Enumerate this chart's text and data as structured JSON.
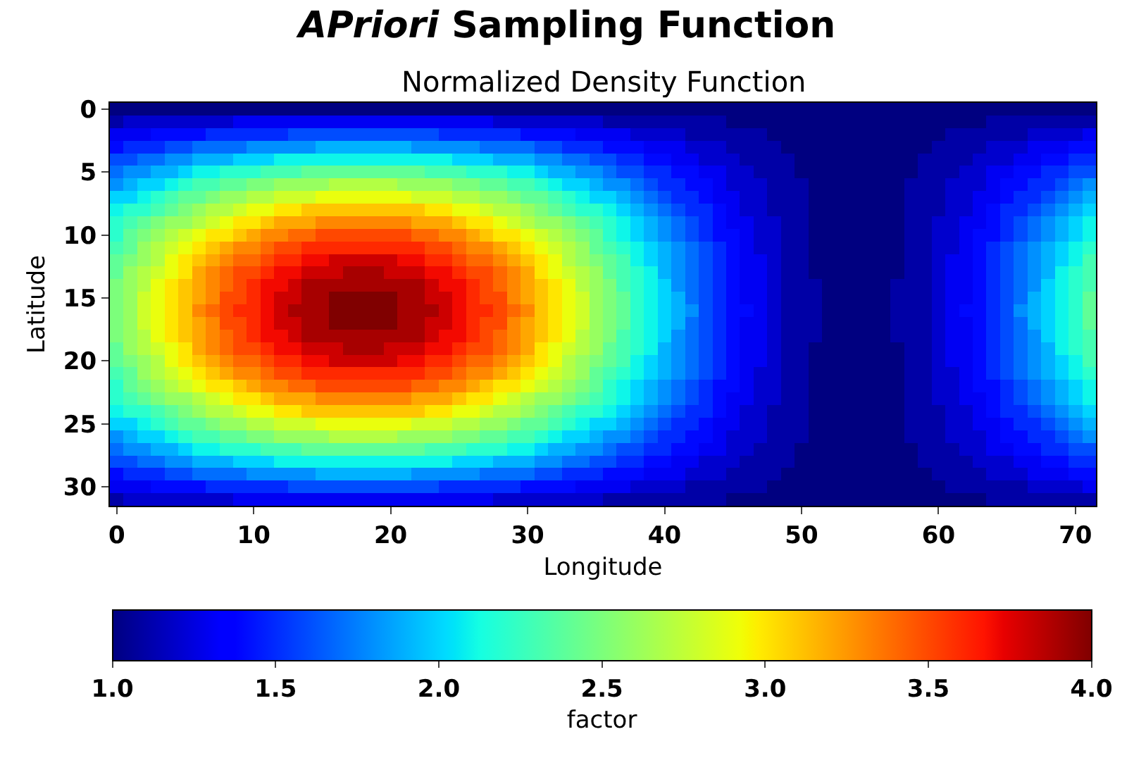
{
  "chart_data": {
    "type": "heatmap",
    "title": "APriori Sampling Function",
    "subtitle": "Normalized Density Function",
    "xlabel": "Longitude",
    "ylabel": "Latitude",
    "clabel": "factor",
    "x": [
      0,
      1,
      2,
      3,
      4,
      5,
      6,
      7,
      8,
      9,
      10,
      11,
      12,
      13,
      14,
      15,
      16,
      17,
      18,
      19,
      20,
      21,
      22,
      23,
      24,
      25,
      26,
      27,
      28,
      29,
      30,
      31,
      32,
      33,
      34,
      35,
      36,
      37,
      38,
      39,
      40,
      41,
      42,
      43,
      44,
      45,
      46,
      47,
      48,
      49,
      50,
      51,
      52,
      53,
      54,
      55,
      56,
      57,
      58,
      59,
      60,
      61,
      62,
      63,
      64,
      65,
      66,
      67,
      68,
      69,
      70,
      71
    ],
    "xlim": [
      -0.5,
      71.5
    ],
    "xticks": [
      0,
      10,
      20,
      30,
      40,
      50,
      60,
      70
    ],
    "ylim": [
      31.5,
      -0.5
    ],
    "yticks": [
      0,
      5,
      10,
      15,
      20,
      25,
      30
    ],
    "clim": [
      1,
      4
    ],
    "cticks": [
      {
        "value": 1,
        "label": "1.0"
      },
      1.5,
      {
        "value": 2,
        "label": "2.0"
      },
      2.5,
      {
        "value": 3,
        "label": "3.0"
      },
      3.5,
      {
        "value": 4,
        "label": "4.0"
      }
    ],
    "cells": [
      [
        1,
        1,
        1,
        1,
        1,
        1,
        1,
        1,
        1,
        1,
        1,
        1,
        1,
        1,
        1,
        1,
        1,
        1,
        1,
        1,
        1,
        1,
        1,
        1,
        1,
        1,
        1,
        1,
        1,
        1,
        1,
        1,
        1,
        1,
        1,
        1,
        1,
        1,
        1,
        1,
        1,
        1,
        1,
        1,
        1,
        1,
        1,
        1,
        1,
        1,
        1,
        1,
        1,
        1,
        1,
        1,
        1,
        1,
        1,
        1,
        1,
        1,
        1,
        1,
        1,
        1,
        1,
        1,
        1,
        1,
        1,
        1
      ],
      [
        1.1,
        1.2,
        1.2,
        1.2,
        1.2,
        1.2,
        1.2,
        1.2,
        1.2,
        1.3,
        1.3,
        1.3,
        1.3,
        1.3,
        1.3,
        1.3,
        1.3,
        1.3,
        1.3,
        1.3,
        1.3,
        1.3,
        1.3,
        1.3,
        1.3,
        1.3,
        1.3,
        1.3,
        1.2,
        1.2,
        1.2,
        1.2,
        1.2,
        1.2,
        1.2,
        1.2,
        1.1,
        1.1,
        1.1,
        1.1,
        1.1,
        1.1,
        1.1,
        1.1,
        1.1,
        1,
        1,
        1,
        1,
        1,
        1,
        1,
        1,
        1,
        1,
        1,
        1,
        1,
        1,
        1,
        1,
        1,
        1,
        1,
        1.1,
        1.1,
        1.1,
        1.1,
        1.1,
        1.1,
        1.1,
        1.1
      ],
      [
        1.3,
        1.3,
        1.3,
        1.4,
        1.4,
        1.4,
        1.4,
        1.5,
        1.5,
        1.5,
        1.5,
        1.5,
        1.5,
        1.6,
        1.6,
        1.6,
        1.6,
        1.6,
        1.6,
        1.6,
        1.6,
        1.6,
        1.6,
        1.6,
        1.5,
        1.5,
        1.5,
        1.5,
        1.5,
        1.5,
        1.4,
        1.4,
        1.4,
        1.4,
        1.3,
        1.3,
        1.3,
        1.3,
        1.2,
        1.2,
        1.2,
        1.2,
        1.1,
        1.1,
        1.1,
        1.1,
        1.1,
        1.1,
        1,
        1,
        1,
        1,
        1,
        1,
        1,
        1,
        1,
        1,
        1,
        1,
        1,
        1.1,
        1.1,
        1.1,
        1.1,
        1.1,
        1.1,
        1.2,
        1.2,
        1.2,
        1.2,
        1.3
      ],
      [
        1.4,
        1.5,
        1.5,
        1.5,
        1.6,
        1.6,
        1.7,
        1.7,
        1.7,
        1.7,
        1.8,
        1.8,
        1.8,
        1.8,
        1.8,
        1.9,
        1.9,
        1.9,
        1.9,
        1.9,
        1.9,
        1.9,
        1.8,
        1.8,
        1.8,
        1.8,
        1.8,
        1.7,
        1.7,
        1.7,
        1.7,
        1.6,
        1.6,
        1.5,
        1.5,
        1.5,
        1.4,
        1.4,
        1.4,
        1.3,
        1.3,
        1.3,
        1.2,
        1.2,
        1.2,
        1.1,
        1.1,
        1.1,
        1.1,
        1,
        1,
        1,
        1,
        1,
        1,
        1,
        1,
        1,
        1,
        1,
        1.1,
        1.1,
        1.1,
        1.1,
        1.2,
        1.2,
        1.2,
        1.3,
        1.3,
        1.3,
        1.4,
        1.4
      ],
      [
        1.6,
        1.6,
        1.7,
        1.7,
        1.8,
        1.8,
        1.9,
        1.9,
        1.9,
        2,
        2,
        2,
        2.1,
        2.1,
        2.1,
        2.1,
        2.1,
        2.1,
        2.1,
        2.1,
        2.1,
        2.1,
        2.1,
        2.1,
        2.1,
        2,
        2,
        2,
        1.9,
        1.9,
        1.9,
        1.8,
        1.8,
        1.7,
        1.7,
        1.6,
        1.6,
        1.5,
        1.5,
        1.4,
        1.4,
        1.3,
        1.3,
        1.2,
        1.2,
        1.2,
        1.1,
        1.1,
        1.1,
        1.1,
        1,
        1,
        1,
        1,
        1,
        1,
        1,
        1,
        1,
        1.1,
        1.1,
        1.1,
        1.1,
        1.2,
        1.2,
        1.2,
        1.3,
        1.3,
        1.4,
        1.4,
        1.5,
        1.5
      ],
      [
        1.7,
        1.8,
        1.8,
        1.9,
        1.9,
        2,
        2.1,
        2.1,
        2.2,
        2.2,
        2.2,
        2.3,
        2.3,
        2.3,
        2.4,
        2.4,
        2.4,
        2.4,
        2.4,
        2.4,
        2.4,
        2.4,
        2.4,
        2.3,
        2.3,
        2.3,
        2.2,
        2.2,
        2.2,
        2.1,
        2.1,
        2,
        1.9,
        1.9,
        1.8,
        1.8,
        1.7,
        1.6,
        1.6,
        1.5,
        1.5,
        1.4,
        1.4,
        1.3,
        1.3,
        1.2,
        1.2,
        1.1,
        1.1,
        1.1,
        1,
        1,
        1,
        1,
        1,
        1,
        1,
        1,
        1,
        1.1,
        1.1,
        1.1,
        1.2,
        1.2,
        1.3,
        1.3,
        1.4,
        1.4,
        1.5,
        1.5,
        1.6,
        1.6
      ],
      [
        1.8,
        1.9,
        2,
        2,
        2.1,
        2.2,
        2.3,
        2.3,
        2.4,
        2.4,
        2.5,
        2.5,
        2.6,
        2.6,
        2.6,
        2.6,
        2.7,
        2.7,
        2.7,
        2.7,
        2.7,
        2.6,
        2.6,
        2.6,
        2.6,
        2.5,
        2.5,
        2.4,
        2.4,
        2.3,
        2.3,
        2.2,
        2.1,
        2,
        2,
        1.9,
        1.8,
        1.8,
        1.7,
        1.6,
        1.5,
        1.5,
        1.4,
        1.4,
        1.3,
        1.2,
        1.2,
        1.2,
        1.1,
        1.1,
        1.1,
        1,
        1,
        1,
        1,
        1,
        1,
        1,
        1.1,
        1.1,
        1.1,
        1.2,
        1.2,
        1.2,
        1.3,
        1.4,
        1.4,
        1.5,
        1.5,
        1.6,
        1.7,
        1.8
      ],
      [
        2,
        2,
        2.1,
        2.2,
        2.3,
        2.4,
        2.4,
        2.5,
        2.6,
        2.6,
        2.7,
        2.7,
        2.8,
        2.8,
        2.8,
        2.9,
        2.9,
        2.9,
        2.9,
        2.9,
        2.9,
        2.9,
        2.8,
        2.8,
        2.8,
        2.7,
        2.7,
        2.6,
        2.6,
        2.5,
        2.4,
        2.4,
        2.3,
        2.2,
        2.1,
        2,
        2,
        1.9,
        1.8,
        1.7,
        1.6,
        1.5,
        1.5,
        1.4,
        1.3,
        1.3,
        1.2,
        1.2,
        1.1,
        1.1,
        1.1,
        1,
        1,
        1,
        1,
        1,
        1,
        1,
        1.1,
        1.1,
        1.1,
        1.2,
        1.2,
        1.3,
        1.3,
        1.4,
        1.5,
        1.5,
        1.6,
        1.7,
        1.8,
        1.9
      ],
      [
        2.1,
        2.2,
        2.2,
        2.3,
        2.4,
        2.5,
        2.6,
        2.7,
        2.7,
        2.8,
        2.9,
        2.9,
        3,
        3,
        3.1,
        3.1,
        3.1,
        3.1,
        3.1,
        3.1,
        3.1,
        3.1,
        3.1,
        3,
        3,
        2.9,
        2.9,
        2.8,
        2.7,
        2.7,
        2.6,
        2.5,
        2.4,
        2.3,
        2.2,
        2.2,
        2.1,
        2,
        1.9,
        1.8,
        1.7,
        1.6,
        1.5,
        1.5,
        1.4,
        1.3,
        1.2,
        1.2,
        1.1,
        1.1,
        1.1,
        1,
        1,
        1,
        1,
        1,
        1,
        1,
        1.1,
        1.1,
        1.1,
        1.2,
        1.2,
        1.3,
        1.4,
        1.5,
        1.5,
        1.6,
        1.7,
        1.8,
        1.9,
        2
      ],
      [
        2.2,
        2.3,
        2.4,
        2.5,
        2.6,
        2.6,
        2.7,
        2.8,
        2.9,
        3,
        3,
        3.1,
        3.2,
        3.2,
        3.2,
        3.3,
        3.3,
        3.3,
        3.3,
        3.3,
        3.3,
        3.3,
        3.2,
        3.2,
        3.2,
        3.1,
        3,
        3,
        2.9,
        2.8,
        2.7,
        2.6,
        2.6,
        2.5,
        2.4,
        2.3,
        2.2,
        2.1,
        2,
        1.9,
        1.8,
        1.7,
        1.6,
        1.5,
        1.4,
        1.3,
        1.3,
        1.2,
        1.2,
        1.1,
        1.1,
        1,
        1,
        1,
        1,
        1,
        1,
        1,
        1.1,
        1.1,
        1.2,
        1.2,
        1.3,
        1.3,
        1.4,
        1.5,
        1.6,
        1.7,
        1.8,
        1.9,
        2,
        2.1
      ],
      [
        2.2,
        2.4,
        2.5,
        2.6,
        2.7,
        2.8,
        2.9,
        3,
        3,
        3.1,
        3.2,
        3.3,
        3.3,
        3.4,
        3.4,
        3.5,
        3.5,
        3.5,
        3.5,
        3.5,
        3.5,
        3.5,
        3.4,
        3.4,
        3.3,
        3.3,
        3.2,
        3.1,
        3,
        3,
        2.9,
        2.8,
        2.7,
        2.6,
        2.5,
        2.4,
        2.2,
        2.1,
        2,
        1.9,
        1.8,
        1.7,
        1.6,
        1.5,
        1.4,
        1.4,
        1.3,
        1.2,
        1.2,
        1.1,
        1.1,
        1,
        1,
        1,
        1,
        1,
        1,
        1,
        1.1,
        1.1,
        1.2,
        1.2,
        1.3,
        1.4,
        1.4,
        1.5,
        1.6,
        1.7,
        1.8,
        1.9,
        2,
        2.1
      ],
      [
        2.3,
        2.4,
        2.6,
        2.7,
        2.8,
        2.9,
        3,
        3.1,
        3.2,
        3.3,
        3.3,
        3.4,
        3.5,
        3.5,
        3.6,
        3.6,
        3.6,
        3.6,
        3.6,
        3.6,
        3.6,
        3.6,
        3.6,
        3.5,
        3.5,
        3.4,
        3.3,
        3.3,
        3.2,
        3.1,
        3,
        2.9,
        2.8,
        2.7,
        2.6,
        2.4,
        2.3,
        2.2,
        2.1,
        2,
        1.9,
        1.8,
        1.7,
        1.6,
        1.5,
        1.4,
        1.3,
        1.2,
        1.2,
        1.1,
        1.1,
        1,
        1,
        1,
        1,
        1,
        1,
        1,
        1.1,
        1.1,
        1.2,
        1.2,
        1.3,
        1.4,
        1.5,
        1.6,
        1.7,
        1.8,
        1.9,
        2,
        2.1,
        2.2
      ],
      [
        2.4,
        2.5,
        2.6,
        2.7,
        2.9,
        3,
        3.1,
        3.2,
        3.3,
        3.4,
        3.4,
        3.5,
        3.6,
        3.6,
        3.7,
        3.7,
        3.8,
        3.8,
        3.8,
        3.8,
        3.8,
        3.7,
        3.7,
        3.6,
        3.6,
        3.5,
        3.4,
        3.4,
        3.3,
        3.2,
        3.1,
        3,
        2.9,
        2.7,
        2.6,
        2.5,
        2.4,
        2.3,
        2.1,
        2,
        1.9,
        1.8,
        1.7,
        1.6,
        1.5,
        1.4,
        1.3,
        1.3,
        1.2,
        1.1,
        1.1,
        1,
        1,
        1,
        1,
        1,
        1,
        1,
        1.1,
        1.1,
        1.2,
        1.3,
        1.3,
        1.4,
        1.5,
        1.6,
        1.7,
        1.8,
        1.9,
        2,
        2.1,
        2.3
      ],
      [
        2.4,
        2.6,
        2.7,
        2.8,
        2.9,
        3,
        3.2,
        3.3,
        3.4,
        3.5,
        3.5,
        3.6,
        3.7,
        3.7,
        3.8,
        3.8,
        3.8,
        3.9,
        3.9,
        3.9,
        3.8,
        3.8,
        3.8,
        3.7,
        3.7,
        3.6,
        3.5,
        3.5,
        3.4,
        3.3,
        3.2,
        3,
        2.9,
        2.8,
        2.7,
        2.6,
        2.4,
        2.3,
        2.2,
        2.1,
        1.9,
        1.8,
        1.7,
        1.6,
        1.5,
        1.4,
        1.3,
        1.3,
        1.2,
        1.1,
        1.1,
        1,
        1,
        1,
        1,
        1,
        1,
        1,
        1.1,
        1.1,
        1.2,
        1.3,
        1.3,
        1.4,
        1.5,
        1.6,
        1.7,
        1.8,
        1.9,
        2.1,
        2.2,
        2.3
      ],
      [
        2.5,
        2.6,
        2.7,
        2.9,
        3,
        3.1,
        3.2,
        3.3,
        3.4,
        3.5,
        3.6,
        3.7,
        3.7,
        3.8,
        3.9,
        3.9,
        3.9,
        3.9,
        3.9,
        3.9,
        3.9,
        3.9,
        3.9,
        3.8,
        3.7,
        3.7,
        3.6,
        3.5,
        3.4,
        3.3,
        3.2,
        3.1,
        3,
        2.9,
        2.7,
        2.6,
        2.5,
        2.3,
        2.2,
        2.1,
        2,
        1.8,
        1.7,
        1.6,
        1.5,
        1.4,
        1.3,
        1.3,
        1.2,
        1.1,
        1.1,
        1.1,
        1,
        1,
        1,
        1,
        1,
        1.1,
        1.1,
        1.1,
        1.2,
        1.3,
        1.3,
        1.4,
        1.5,
        1.6,
        1.7,
        1.8,
        2,
        2.1,
        2.2,
        2.3
      ],
      [
        2.5,
        2.6,
        2.8,
        2.9,
        3,
        3.1,
        3.2,
        3.3,
        3.5,
        3.5,
        3.6,
        3.7,
        3.8,
        3.8,
        3.9,
        3.9,
        4,
        4,
        4,
        4,
        4,
        3.9,
        3.9,
        3.8,
        3.8,
        3.7,
        3.6,
        3.5,
        3.5,
        3.3,
        3.2,
        3.1,
        3,
        2.9,
        2.8,
        2.6,
        2.5,
        2.4,
        2.2,
        2.1,
        2,
        1.9,
        1.7,
        1.6,
        1.5,
        1.4,
        1.3,
        1.3,
        1.2,
        1.1,
        1.1,
        1.1,
        1,
        1,
        1,
        1,
        1,
        1.1,
        1.1,
        1.1,
        1.2,
        1.3,
        1.3,
        1.4,
        1.5,
        1.6,
        1.7,
        1.9,
        2,
        2.1,
        2.2,
        2.4
      ],
      [
        2.5,
        2.6,
        2.8,
        2.9,
        3,
        3.1,
        3.3,
        3.4,
        3.5,
        3.6,
        3.6,
        3.7,
        3.8,
        3.9,
        3.9,
        3.9,
        4,
        4,
        4,
        4,
        4,
        3.9,
        3.9,
        3.9,
        3.8,
        3.7,
        3.6,
        3.6,
        3.5,
        3.4,
        3.3,
        3.1,
        3,
        2.9,
        2.8,
        2.6,
        2.5,
        2.4,
        2.2,
        2.1,
        2,
        1.9,
        1.8,
        1.6,
        1.5,
        1.4,
        1.4,
        1.3,
        1.2,
        1.1,
        1.1,
        1.1,
        1,
        1,
        1,
        1,
        1,
        1.1,
        1.1,
        1.1,
        1.2,
        1.3,
        1.4,
        1.4,
        1.5,
        1.6,
        1.8,
        1.9,
        2,
        2.1,
        2.2,
        2.4
      ],
      [
        2.5,
        2.6,
        2.8,
        2.9,
        3,
        3.1,
        3.2,
        3.3,
        3.5,
        3.5,
        3.6,
        3.7,
        3.8,
        3.8,
        3.9,
        3.9,
        4,
        4,
        4,
        4,
        4,
        3.9,
        3.9,
        3.8,
        3.8,
        3.7,
        3.6,
        3.5,
        3.5,
        3.3,
        3.2,
        3.1,
        3,
        2.9,
        2.8,
        2.6,
        2.5,
        2.4,
        2.2,
        2.1,
        2,
        1.9,
        1.7,
        1.6,
        1.5,
        1.4,
        1.3,
        1.3,
        1.2,
        1.1,
        1.1,
        1.1,
        1,
        1,
        1,
        1,
        1,
        1.1,
        1.1,
        1.1,
        1.2,
        1.3,
        1.3,
        1.4,
        1.5,
        1.6,
        1.7,
        1.9,
        2,
        2.1,
        2.2,
        2.4
      ],
      [
        2.5,
        2.6,
        2.7,
        2.9,
        3,
        3.1,
        3.2,
        3.3,
        3.4,
        3.5,
        3.6,
        3.7,
        3.7,
        3.8,
        3.9,
        3.9,
        3.9,
        3.9,
        3.9,
        3.9,
        3.9,
        3.9,
        3.9,
        3.8,
        3.7,
        3.7,
        3.6,
        3.5,
        3.4,
        3.3,
        3.2,
        3.1,
        3,
        2.9,
        2.7,
        2.6,
        2.5,
        2.3,
        2.2,
        2.1,
        2,
        1.8,
        1.7,
        1.6,
        1.5,
        1.4,
        1.3,
        1.3,
        1.2,
        1.1,
        1.1,
        1.1,
        1,
        1,
        1,
        1,
        1,
        1.1,
        1.1,
        1.1,
        1.2,
        1.3,
        1.3,
        1.4,
        1.5,
        1.6,
        1.7,
        1.8,
        2,
        2.1,
        2.2,
        2.3
      ],
      [
        2.4,
        2.6,
        2.7,
        2.8,
        2.9,
        3,
        3.2,
        3.3,
        3.4,
        3.5,
        3.5,
        3.6,
        3.7,
        3.7,
        3.8,
        3.8,
        3.8,
        3.9,
        3.9,
        3.9,
        3.8,
        3.8,
        3.8,
        3.7,
        3.7,
        3.6,
        3.5,
        3.5,
        3.4,
        3.3,
        3.2,
        3,
        2.9,
        2.8,
        2.7,
        2.6,
        2.4,
        2.3,
        2.2,
        2.1,
        1.9,
        1.8,
        1.7,
        1.6,
        1.5,
        1.4,
        1.3,
        1.3,
        1.2,
        1.1,
        1.1,
        1,
        1,
        1,
        1,
        1,
        1,
        1,
        1.1,
        1.1,
        1.2,
        1.3,
        1.3,
        1.4,
        1.5,
        1.6,
        1.7,
        1.8,
        1.9,
        2.1,
        2.2,
        2.3
      ],
      [
        2.4,
        2.5,
        2.6,
        2.7,
        2.9,
        3,
        3.1,
        3.2,
        3.3,
        3.4,
        3.4,
        3.5,
        3.6,
        3.6,
        3.7,
        3.7,
        3.8,
        3.8,
        3.8,
        3.8,
        3.8,
        3.7,
        3.7,
        3.6,
        3.6,
        3.5,
        3.4,
        3.4,
        3.3,
        3.2,
        3.1,
        3,
        2.9,
        2.7,
        2.6,
        2.5,
        2.4,
        2.3,
        2.1,
        2,
        1.9,
        1.8,
        1.7,
        1.6,
        1.5,
        1.4,
        1.3,
        1.3,
        1.2,
        1.1,
        1.1,
        1,
        1,
        1,
        1,
        1,
        1,
        1,
        1.1,
        1.1,
        1.2,
        1.3,
        1.3,
        1.4,
        1.5,
        1.6,
        1.7,
        1.8,
        1.9,
        2,
        2.1,
        2.3
      ],
      [
        2.3,
        2.4,
        2.6,
        2.7,
        2.8,
        2.9,
        3,
        3.1,
        3.2,
        3.3,
        3.3,
        3.4,
        3.5,
        3.5,
        3.6,
        3.6,
        3.6,
        3.6,
        3.6,
        3.6,
        3.6,
        3.6,
        3.6,
        3.5,
        3.5,
        3.4,
        3.3,
        3.3,
        3.2,
        3.1,
        3,
        2.9,
        2.8,
        2.7,
        2.6,
        2.4,
        2.3,
        2.2,
        2.1,
        2,
        1.9,
        1.8,
        1.7,
        1.6,
        1.5,
        1.4,
        1.3,
        1.2,
        1.2,
        1.1,
        1.1,
        1,
        1,
        1,
        1,
        1,
        1,
        1,
        1.1,
        1.1,
        1.2,
        1.2,
        1.3,
        1.4,
        1.5,
        1.6,
        1.7,
        1.8,
        1.9,
        2,
        2.1,
        2.2
      ],
      [
        2.2,
        2.4,
        2.5,
        2.6,
        2.7,
        2.8,
        2.9,
        3,
        3,
        3.1,
        3.2,
        3.3,
        3.3,
        3.4,
        3.4,
        3.5,
        3.5,
        3.5,
        3.5,
        3.5,
        3.5,
        3.5,
        3.4,
        3.4,
        3.3,
        3.3,
        3.2,
        3.1,
        3,
        3,
        2.9,
        2.8,
        2.7,
        2.6,
        2.5,
        2.4,
        2.2,
        2.1,
        2,
        1.9,
        1.8,
        1.7,
        1.6,
        1.5,
        1.4,
        1.4,
        1.3,
        1.2,
        1.2,
        1.1,
        1.1,
        1,
        1,
        1,
        1,
        1,
        1,
        1,
        1.1,
        1.1,
        1.2,
        1.2,
        1.3,
        1.4,
        1.4,
        1.5,
        1.6,
        1.7,
        1.8,
        1.9,
        2,
        2.1
      ],
      [
        2.2,
        2.3,
        2.4,
        2.5,
        2.6,
        2.6,
        2.7,
        2.8,
        2.9,
        3,
        3,
        3.1,
        3.2,
        3.2,
        3.2,
        3.3,
        3.3,
        3.3,
        3.3,
        3.3,
        3.3,
        3.3,
        3.2,
        3.2,
        3.2,
        3.1,
        3,
        3,
        2.9,
        2.8,
        2.7,
        2.6,
        2.6,
        2.5,
        2.4,
        2.3,
        2.2,
        2.1,
        2,
        1.9,
        1.8,
        1.7,
        1.6,
        1.5,
        1.4,
        1.3,
        1.3,
        1.2,
        1.2,
        1.1,
        1.1,
        1,
        1,
        1,
        1,
        1,
        1,
        1,
        1.1,
        1.1,
        1.2,
        1.2,
        1.3,
        1.3,
        1.4,
        1.5,
        1.6,
        1.7,
        1.8,
        1.9,
        2,
        2.1
      ],
      [
        2.1,
        2.2,
        2.2,
        2.3,
        2.4,
        2.5,
        2.6,
        2.7,
        2.7,
        2.8,
        2.9,
        2.9,
        3,
        3,
        3.1,
        3.1,
        3.1,
        3.1,
        3.1,
        3.1,
        3.1,
        3.1,
        3.1,
        3,
        3,
        2.9,
        2.9,
        2.8,
        2.7,
        2.7,
        2.6,
        2.5,
        2.4,
        2.3,
        2.2,
        2.2,
        2.1,
        2,
        1.9,
        1.8,
        1.7,
        1.6,
        1.5,
        1.5,
        1.4,
        1.3,
        1.2,
        1.2,
        1.1,
        1.1,
        1.1,
        1,
        1,
        1,
        1,
        1,
        1,
        1,
        1.1,
        1.1,
        1.1,
        1.2,
        1.2,
        1.3,
        1.4,
        1.5,
        1.5,
        1.6,
        1.7,
        1.8,
        1.9,
        2
      ],
      [
        2,
        2,
        2.1,
        2.2,
        2.3,
        2.4,
        2.4,
        2.5,
        2.6,
        2.6,
        2.7,
        2.7,
        2.8,
        2.8,
        2.8,
        2.9,
        2.9,
        2.9,
        2.9,
        2.9,
        2.9,
        2.9,
        2.8,
        2.8,
        2.8,
        2.7,
        2.7,
        2.6,
        2.6,
        2.5,
        2.4,
        2.4,
        2.3,
        2.2,
        2.1,
        2,
        2,
        1.9,
        1.8,
        1.7,
        1.6,
        1.5,
        1.5,
        1.4,
        1.3,
        1.3,
        1.2,
        1.2,
        1.1,
        1.1,
        1.1,
        1,
        1,
        1,
        1,
        1,
        1,
        1,
        1.1,
        1.1,
        1.1,
        1.2,
        1.2,
        1.3,
        1.3,
        1.4,
        1.5,
        1.5,
        1.6,
        1.7,
        1.8,
        1.9
      ],
      [
        1.8,
        1.9,
        2,
        2,
        2.1,
        2.2,
        2.3,
        2.3,
        2.4,
        2.4,
        2.5,
        2.5,
        2.6,
        2.6,
        2.6,
        2.6,
        2.7,
        2.7,
        2.7,
        2.7,
        2.7,
        2.6,
        2.6,
        2.6,
        2.6,
        2.5,
        2.5,
        2.4,
        2.4,
        2.3,
        2.3,
        2.2,
        2.1,
        2,
        2,
        1.9,
        1.8,
        1.8,
        1.7,
        1.6,
        1.5,
        1.5,
        1.4,
        1.4,
        1.3,
        1.2,
        1.2,
        1.2,
        1.1,
        1.1,
        1.1,
        1,
        1,
        1,
        1,
        1,
        1,
        1,
        1.1,
        1.1,
        1.1,
        1.2,
        1.2,
        1.2,
        1.3,
        1.4,
        1.4,
        1.5,
        1.5,
        1.6,
        1.7,
        1.8
      ],
      [
        1.7,
        1.8,
        1.8,
        1.9,
        1.9,
        2,
        2.1,
        2.1,
        2.2,
        2.2,
        2.2,
        2.3,
        2.3,
        2.3,
        2.4,
        2.4,
        2.4,
        2.4,
        2.4,
        2.4,
        2.4,
        2.4,
        2.4,
        2.3,
        2.3,
        2.3,
        2.2,
        2.2,
        2.2,
        2.1,
        2.1,
        2,
        1.9,
        1.9,
        1.8,
        1.8,
        1.7,
        1.6,
        1.6,
        1.5,
        1.5,
        1.4,
        1.4,
        1.3,
        1.3,
        1.2,
        1.2,
        1.1,
        1.1,
        1.1,
        1,
        1,
        1,
        1,
        1,
        1,
        1,
        1,
        1,
        1.1,
        1.1,
        1.1,
        1.2,
        1.2,
        1.3,
        1.3,
        1.4,
        1.4,
        1.5,
        1.5,
        1.6,
        1.6
      ],
      [
        1.6,
        1.6,
        1.7,
        1.7,
        1.8,
        1.8,
        1.9,
        1.9,
        1.9,
        2,
        2,
        2,
        2.1,
        2.1,
        2.1,
        2.1,
        2.1,
        2.1,
        2.1,
        2.1,
        2.1,
        2.1,
        2.1,
        2.1,
        2.1,
        2,
        2,
        2,
        1.9,
        1.9,
        1.9,
        1.8,
        1.8,
        1.7,
        1.7,
        1.6,
        1.6,
        1.5,
        1.5,
        1.4,
        1.4,
        1.3,
        1.3,
        1.2,
        1.2,
        1.2,
        1.1,
        1.1,
        1.1,
        1.1,
        1,
        1,
        1,
        1,
        1,
        1,
        1,
        1,
        1,
        1.1,
        1.1,
        1.1,
        1.1,
        1.2,
        1.2,
        1.2,
        1.3,
        1.3,
        1.4,
        1.4,
        1.5,
        1.5
      ],
      [
        1.4,
        1.5,
        1.5,
        1.5,
        1.6,
        1.6,
        1.7,
        1.7,
        1.7,
        1.7,
        1.8,
        1.8,
        1.8,
        1.8,
        1.8,
        1.9,
        1.9,
        1.9,
        1.9,
        1.9,
        1.9,
        1.9,
        1.8,
        1.8,
        1.8,
        1.8,
        1.8,
        1.7,
        1.7,
        1.7,
        1.7,
        1.6,
        1.6,
        1.5,
        1.5,
        1.5,
        1.4,
        1.4,
        1.4,
        1.3,
        1.3,
        1.3,
        1.2,
        1.2,
        1.2,
        1.1,
        1.1,
        1.1,
        1.1,
        1,
        1,
        1,
        1,
        1,
        1,
        1,
        1,
        1,
        1,
        1,
        1.1,
        1.1,
        1.1,
        1.1,
        1.2,
        1.2,
        1.2,
        1.3,
        1.3,
        1.3,
        1.4,
        1.4
      ],
      [
        1.3,
        1.3,
        1.3,
        1.4,
        1.4,
        1.4,
        1.4,
        1.5,
        1.5,
        1.5,
        1.5,
        1.5,
        1.5,
        1.6,
        1.6,
        1.6,
        1.6,
        1.6,
        1.6,
        1.6,
        1.6,
        1.6,
        1.6,
        1.6,
        1.5,
        1.5,
        1.5,
        1.5,
        1.5,
        1.5,
        1.4,
        1.4,
        1.4,
        1.4,
        1.3,
        1.3,
        1.3,
        1.3,
        1.2,
        1.2,
        1.2,
        1.2,
        1.1,
        1.1,
        1.1,
        1.1,
        1.1,
        1.1,
        1,
        1,
        1,
        1,
        1,
        1,
        1,
        1,
        1,
        1,
        1,
        1,
        1,
        1.1,
        1.1,
        1.1,
        1.1,
        1.1,
        1.1,
        1.2,
        1.2,
        1.2,
        1.2,
        1.3
      ],
      [
        1.1,
        1.2,
        1.2,
        1.2,
        1.2,
        1.2,
        1.2,
        1.2,
        1.2,
        1.3,
        1.3,
        1.3,
        1.3,
        1.3,
        1.3,
        1.3,
        1.3,
        1.3,
        1.3,
        1.3,
        1.3,
        1.3,
        1.3,
        1.3,
        1.3,
        1.3,
        1.3,
        1.3,
        1.2,
        1.2,
        1.2,
        1.2,
        1.2,
        1.2,
        1.2,
        1.2,
        1.1,
        1.1,
        1.1,
        1.1,
        1.1,
        1.1,
        1.1,
        1.1,
        1.1,
        1,
        1,
        1,
        1,
        1,
        1,
        1,
        1,
        1,
        1,
        1,
        1,
        1,
        1,
        1,
        1,
        1,
        1,
        1,
        1.1,
        1.1,
        1.1,
        1.1,
        1.1,
        1.1,
        1.1,
        1.1
      ]
    ]
  }
}
